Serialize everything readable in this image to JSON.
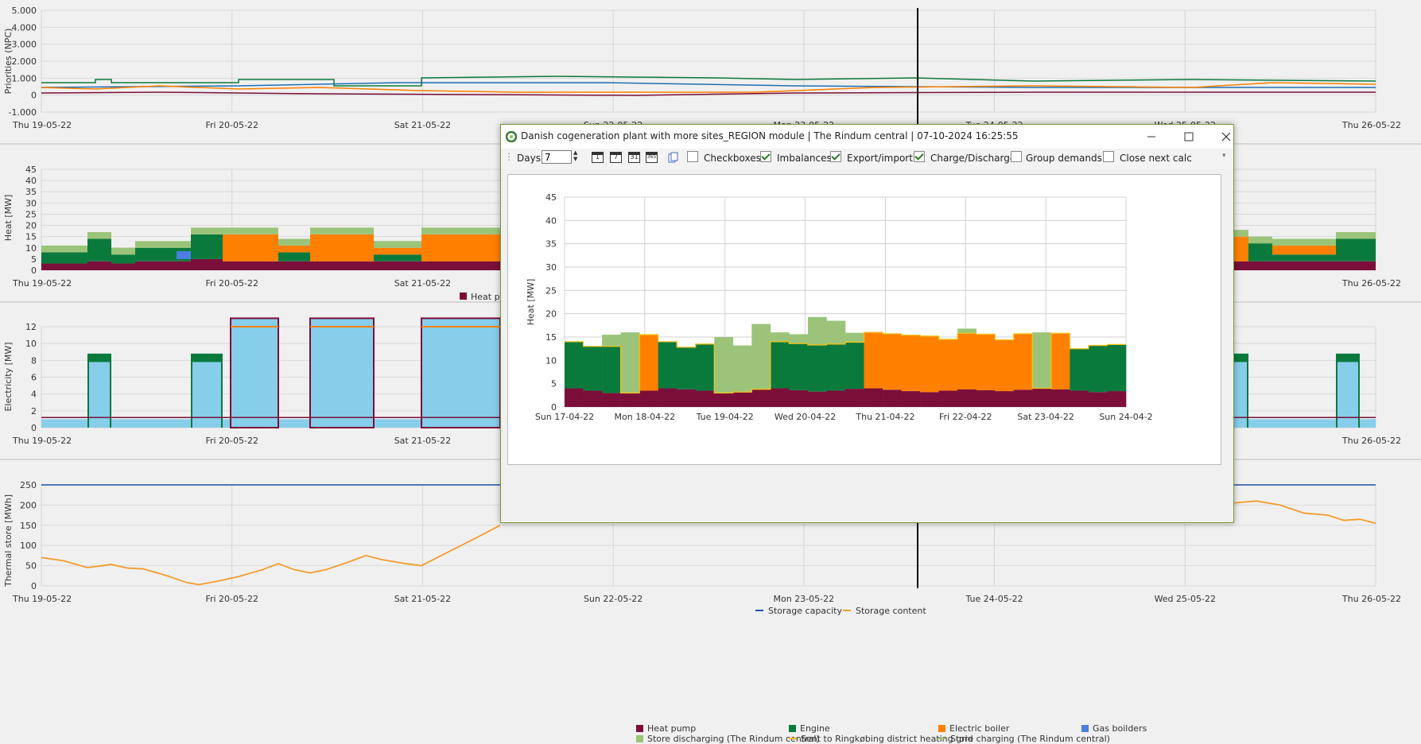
{
  "bg": {
    "xticks": [
      "Thu 19-05-22",
      "Fri 20-05-22",
      "Sat 21-05-22",
      "Sun 22-05-22",
      "Mon 23-05-22",
      "Tue 24-05-22",
      "Wed 25-05-22",
      "Thu 26-05-22"
    ],
    "priorities": {
      "ylabel": "Priorities (NPC)",
      "yticks": [
        "5.000",
        "4.000",
        "3.000",
        "2.000",
        "1.000",
        "0",
        "-1.000"
      ]
    },
    "heat": {
      "ylabel": "Heat [MW]",
      "yticks": [
        "45",
        "40",
        "35",
        "30",
        "25",
        "20",
        "15",
        "10",
        "5",
        "0"
      ],
      "legend_partial": "Heat pu"
    },
    "electricity": {
      "ylabel": "Electricity [MW]",
      "yticks": [
        "12",
        "10",
        "8",
        "6",
        "4",
        "2",
        "0"
      ]
    },
    "store": {
      "ylabel": "Thermal store [MWh]",
      "yticks": [
        "250",
        "200",
        "150",
        "100",
        "50",
        "0"
      ],
      "legend": [
        "Storage capacity",
        "Storage content"
      ]
    }
  },
  "window": {
    "title": "Danish cogeneration plant with more sites_REGION module | The Rindum central | 07-10-2024 16:25:55",
    "toolbar": {
      "days_label": "Days",
      "days_value": "7",
      "cal_icons": [
        "1",
        "7",
        "31",
        "365"
      ],
      "checkboxes": [
        {
          "label": "Checkboxes",
          "checked": false
        },
        {
          "label": "Imbalances",
          "checked": true
        },
        {
          "label": "Export/import",
          "checked": true
        },
        {
          "label": "Charge/Discharge",
          "checked": true
        },
        {
          "label": "Group demands",
          "checked": false
        },
        {
          "label": "Close next calc",
          "checked": false
        }
      ]
    }
  },
  "chart_data": {
    "type": "area",
    "title": "",
    "ylabel": "Heat [MW]",
    "ylim": [
      0,
      45
    ],
    "yticks": [
      0,
      5,
      10,
      15,
      20,
      25,
      30,
      35,
      40,
      45
    ],
    "xticks": [
      "Sun 17-04-22",
      "Mon 18-04-22",
      "Tue 19-04-22",
      "Wed 20-04-22",
      "Thu 21-04-22",
      "Fri 22-04-22",
      "Sat 23-04-22",
      "Sun 24-04-2"
    ],
    "legend": [
      {
        "name": "Heat pump",
        "color": "#7b0f3a",
        "kind": "box"
      },
      {
        "name": "Engine",
        "color": "#0a7a3c",
        "kind": "box"
      },
      {
        "name": "Electric boiler",
        "color": "#ff8000",
        "kind": "box"
      },
      {
        "name": "Gas boilders",
        "color": "#4a7fe0",
        "kind": "box"
      },
      {
        "name": "Store discharging (The Rindum central)",
        "color": "#9bc47a",
        "kind": "box"
      },
      {
        "name": "Sent to Ringkøbing district heating grid",
        "color": "#f3c21b",
        "kind": "line"
      },
      {
        "name": "Store charging (The Rindum central)",
        "color": "#9bc47a",
        "kind": "line"
      }
    ],
    "x_days": 7,
    "series": [
      {
        "name": "Heat pump",
        "values": [
          4,
          3.5,
          3,
          3,
          3.5,
          4,
          3.8,
          3.5,
          3,
          3.2,
          3.8,
          4,
          3.6,
          3.3,
          3.5,
          3.9,
          4,
          3.7,
          3.4,
          3.2,
          3.5,
          3.8,
          3.6,
          3.4,
          3.7,
          4,
          3.8,
          3.5,
          3.2,
          3.4
        ]
      },
      {
        "name": "Engine",
        "values": [
          10,
          9.5,
          10,
          0,
          0,
          10,
          9,
          10,
          0,
          0,
          0,
          10,
          10,
          10,
          10,
          10,
          0,
          0,
          0,
          0,
          0,
          0,
          0,
          0,
          0,
          0,
          0,
          9,
          10,
          10
        ]
      },
      {
        "name": "Electric boiler",
        "values": [
          0,
          0,
          0,
          0,
          12,
          0,
          0,
          0,
          0,
          0,
          0,
          0,
          0,
          0,
          0,
          0,
          12,
          12,
          12,
          12,
          11,
          12,
          12,
          11,
          12,
          0,
          12,
          0,
          0,
          0
        ]
      },
      {
        "name": "Store discharging (The Rindum central)",
        "values": [
          0,
          0,
          2.5,
          13,
          0,
          0,
          0,
          0,
          12,
          10,
          14,
          2,
          2,
          6,
          5,
          2,
          0,
          0,
          0,
          0,
          0,
          1,
          0,
          0,
          0,
          12,
          0,
          0,
          0,
          0
        ]
      }
    ]
  }
}
